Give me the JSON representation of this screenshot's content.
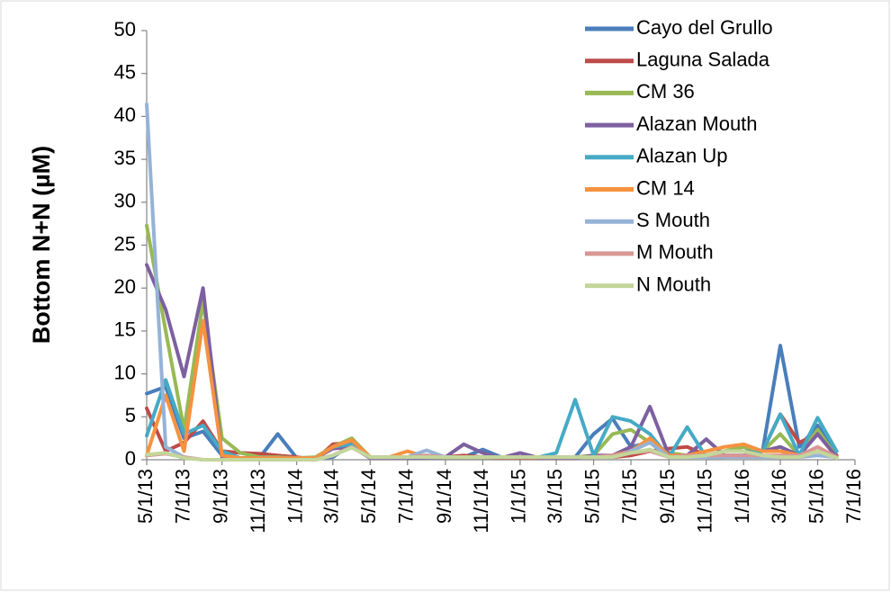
{
  "chart_data": {
    "type": "line",
    "y_label": "Bottom N+N (µM)",
    "x": [
      "5/1/13",
      "6/1/13",
      "7/1/13",
      "8/1/13",
      "9/1/13",
      "10/1/13",
      "11/1/13",
      "12/1/13",
      "1/1/14",
      "2/1/14",
      "3/1/14",
      "4/1/14",
      "5/1/14",
      "6/1/14",
      "7/1/14",
      "8/1/14",
      "9/1/14",
      "10/1/14",
      "11/1/14",
      "12/1/14",
      "1/1/15",
      "2/1/15",
      "3/1/15",
      "4/1/15",
      "5/1/15",
      "6/1/15",
      "7/1/15",
      "8/1/15",
      "9/1/15",
      "10/1/15",
      "11/1/15",
      "12/1/15",
      "1/1/16",
      "2/1/16",
      "3/1/16",
      "4/1/16",
      "5/1/16",
      "6/1/16"
    ],
    "series": [
      {
        "name": "Cayo del Grullo",
        "color": "#4a7ebb",
        "values": [
          7.7,
          8.5,
          2.5,
          3.3,
          0.5,
          0.2,
          0.2,
          3,
          0.2,
          0.2,
          0.3,
          1.8,
          0.3,
          0.3,
          0.3,
          0.5,
          0.3,
          0.3,
          1.2,
          0.3,
          0.3,
          0.2,
          0.3,
          0.3,
          3,
          4.8,
          1.5,
          2,
          0.5,
          0.5,
          0.5,
          1,
          1,
          1,
          13.3,
          1.5,
          4,
          0.5
        ]
      },
      {
        "name": "Laguna Salada",
        "color": "#be4b48",
        "values": [
          6,
          1,
          2,
          4.5,
          1,
          0.8,
          0.7,
          0.5,
          0.3,
          0,
          1.8,
          2,
          0.3,
          0.3,
          0.2,
          0.3,
          0.3,
          0.5,
          0.3,
          0.2,
          0.2,
          0.2,
          0.2,
          0.2,
          0.5,
          0.3,
          0.5,
          1,
          1.3,
          1.5,
          0.5,
          1,
          1.5,
          1,
          5.3,
          2,
          3,
          0.5
        ]
      },
      {
        "name": "CM 36",
        "color": "#98b954",
        "values": [
          27.3,
          15,
          3.5,
          18.5,
          2.5,
          0.8,
          0.3,
          0.3,
          0.2,
          0.3,
          1.5,
          2.5,
          0.3,
          0.3,
          0.3,
          0.3,
          0.3,
          0.3,
          0.3,
          0.3,
          0.3,
          0.3,
          0.3,
          0.3,
          0.5,
          3,
          3.5,
          2,
          0.8,
          0.5,
          0.5,
          1,
          1.5,
          1,
          3,
          0.5,
          3.5,
          0.3
        ]
      },
      {
        "name": "Alazan Mouth",
        "color": "#7d60a0",
        "values": [
          22.7,
          17.5,
          9.7,
          20,
          0.3,
          0.2,
          0.2,
          0.2,
          0.2,
          0.2,
          1.3,
          1.5,
          0.2,
          0.2,
          0.2,
          0.2,
          0.3,
          1.8,
          0.8,
          0.2,
          0.8,
          0.2,
          0.2,
          0.2,
          0.5,
          0.5,
          1.5,
          6.2,
          0.5,
          0.5,
          2.4,
          0.5,
          0.5,
          1,
          1.5,
          0.5,
          3,
          0.3
        ]
      },
      {
        "name": "Alazan Up",
        "color": "#46aac5",
        "values": [
          2.8,
          9.3,
          3,
          4,
          1,
          0.2,
          0.2,
          0.2,
          0.2,
          0.2,
          1.5,
          1.8,
          0.3,
          0.3,
          0.3,
          0.3,
          0.3,
          0.3,
          0.3,
          0.3,
          0.3,
          0.3,
          0.8,
          7,
          0.5,
          5,
          4.5,
          3,
          0.3,
          3.8,
          0.3,
          0.3,
          0.5,
          1,
          5.3,
          0.5,
          4.9,
          1
        ]
      },
      {
        "name": "CM 14",
        "color": "#f69240",
        "values": [
          0.5,
          7.5,
          1,
          16.2,
          0.5,
          0.2,
          0.2,
          0.2,
          0.2,
          0.2,
          1.5,
          2.3,
          0.3,
          0.3,
          1,
          0.3,
          0.3,
          0.3,
          0.3,
          0.3,
          0.3,
          0.3,
          0.3,
          0.3,
          0.3,
          0.5,
          1,
          2.5,
          0.5,
          0.5,
          1,
          1.5,
          1.8,
          1,
          1,
          0.5,
          1,
          0.3
        ]
      },
      {
        "name": "S Mouth",
        "color": "#95b3d7",
        "values": [
          41.4,
          1.5,
          0.3,
          0,
          0,
          0,
          0,
          0,
          0,
          0,
          0.5,
          1.5,
          0.3,
          0.3,
          0.3,
          1.1,
          0.3,
          0.3,
          0.3,
          0.3,
          0.3,
          0.3,
          0.3,
          0.3,
          0.3,
          0.3,
          1,
          2,
          0.3,
          0.3,
          0.3,
          0.3,
          0.3,
          0.3,
          0.3,
          0.3,
          0.5,
          0.3
        ]
      },
      {
        "name": "M Mouth",
        "color": "#d99694",
        "values": [
          0.5,
          0.7,
          0.3,
          0,
          0,
          0,
          0,
          0,
          0,
          0,
          0.5,
          1.5,
          0.3,
          0.3,
          0.3,
          0.5,
          0.3,
          0.3,
          0.3,
          0.3,
          0.3,
          0.3,
          0.3,
          0.3,
          0.3,
          0.5,
          0.8,
          1,
          0.3,
          0.5,
          0.5,
          0.5,
          0.5,
          0.5,
          0.5,
          0.5,
          1.5,
          0.3
        ]
      },
      {
        "name": "N Mouth",
        "color": "#c3d69b",
        "values": [
          0.6,
          0.8,
          0.2,
          0,
          0,
          0,
          0,
          0,
          0,
          0,
          0.5,
          1.4,
          0.3,
          0.3,
          0.3,
          0.3,
          0.3,
          0.3,
          0.3,
          0.3,
          0.3,
          0.3,
          0.3,
          0.3,
          0.3,
          0.3,
          0.8,
          1.2,
          0.3,
          0.3,
          0.5,
          1,
          1,
          0.5,
          0.3,
          0.3,
          1,
          0.2
        ]
      }
    ],
    "xlim": [
      "5/1/13",
      "7/1/16"
    ],
    "xticks": [
      "5/1/13",
      "7/1/13",
      "9/1/13",
      "11/1/13",
      "1/1/14",
      "3/1/14",
      "5/1/14",
      "7/1/14",
      "9/1/14",
      "11/1/14",
      "1/1/15",
      "3/1/15",
      "5/1/15",
      "7/1/15",
      "9/1/15",
      "11/1/15",
      "1/1/16",
      "3/1/16",
      "5/1/16",
      "7/1/16"
    ],
    "ylim": [
      0,
      50
    ],
    "yticks": [
      0,
      5,
      10,
      15,
      20,
      25,
      30,
      35,
      40,
      45,
      50
    ],
    "grid": false
  }
}
